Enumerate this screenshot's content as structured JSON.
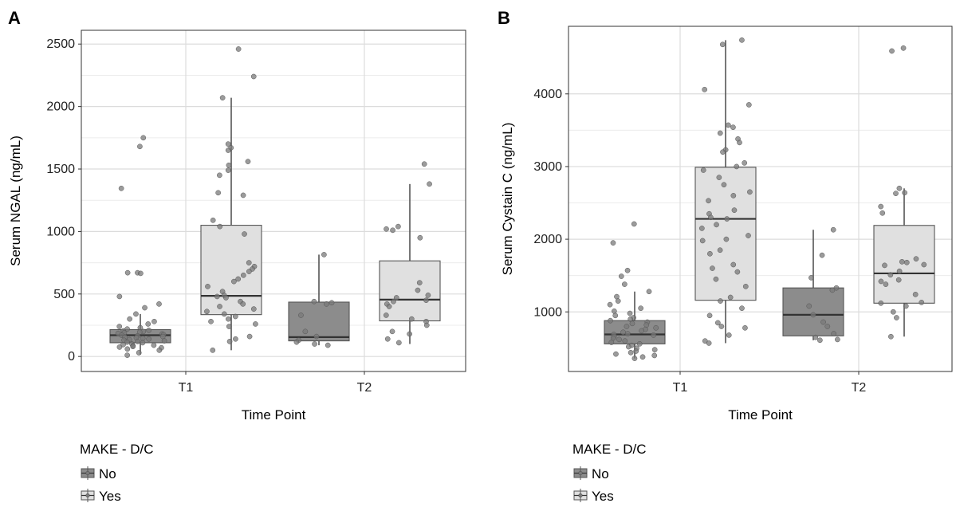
{
  "chart_data": [
    {
      "panel_label": "A",
      "type": "boxplot",
      "xlabel": "Time Point",
      "ylabel": "Serum NGAL (ng/mL)",
      "ylim": [
        -120,
        2610
      ],
      "yticks": [
        0,
        500,
        1000,
        1500,
        2000,
        2500
      ],
      "categories": [
        "T1",
        "T2"
      ],
      "grid": true,
      "legend": {
        "title": "MAKE - D/C",
        "entries": [
          "No",
          "Yes"
        ],
        "placement": "bottom-left"
      },
      "series": [
        {
          "name": "No",
          "color": "#8c8c8c",
          "boxes": [
            {
              "category": "T1",
              "q1": 110,
              "median": 170,
              "q3": 215,
              "whisker_low": 15,
              "whisker_high": 340,
              "points": [
                1680,
                1750,
                1345,
                670,
                670,
                665,
                480,
                420,
                390,
                340,
                300,
                280,
                260,
                240,
                230,
                220,
                210,
                205,
                200,
                195,
                190,
                185,
                180,
                175,
                170,
                165,
                160,
                155,
                150,
                145,
                140,
                135,
                130,
                125,
                120,
                115,
                110,
                100,
                95,
                90,
                85,
                80,
                75,
                70,
                60,
                50,
                30,
                10
              ]
            },
            {
              "category": "T2",
              "q1": 125,
              "median": 155,
              "q3": 435,
              "whisker_low": 90,
              "whisker_high": 815,
              "points": [
                815,
                440,
                430,
                420,
                330,
                200,
                160,
                130,
                115,
                100,
                90
              ]
            }
          ]
        },
        {
          "name": "Yes",
          "color": "#e0e0e0",
          "boxes": [
            {
              "category": "T1",
              "q1": 335,
              "median": 485,
              "q3": 1050,
              "whisker_low": 50,
              "whisker_high": 2070,
              "points": [
                2460,
                2240,
                2070,
                1700,
                1670,
                1650,
                1560,
                1530,
                1490,
                1450,
                1310,
                1290,
                1090,
                1040,
                980,
                750,
                720,
                700,
                680,
                650,
                620,
                600,
                560,
                520,
                490,
                480,
                470,
                440,
                420,
                400,
                380,
                360,
                340,
                320,
                300,
                280,
                260,
                240,
                160,
                140,
                120,
                50
              ]
            },
            {
              "category": "T2",
              "q1": 285,
              "median": 455,
              "q3": 765,
              "whisker_low": 100,
              "whisker_high": 1380,
              "points": [
                1540,
                1380,
                1040,
                1020,
                1010,
                950,
                590,
                530,
                490,
                470,
                450,
                440,
                420,
                400,
                330,
                300,
                280,
                250,
                200,
                180,
                140,
                110
              ]
            }
          ]
        }
      ]
    },
    {
      "panel_label": "B",
      "type": "boxplot",
      "xlabel": "Time Point",
      "ylabel": "Serum Cystain C (ng/mL)",
      "ylim": [
        180,
        4930
      ],
      "yticks": [
        1000,
        2000,
        3000,
        4000
      ],
      "categories": [
        "T1",
        "T2"
      ],
      "grid": true,
      "legend": {
        "title": "MAKE - D/C",
        "entries": [
          "No",
          "Yes"
        ],
        "placement": "bottom-left"
      },
      "series": [
        {
          "name": "No",
          "color": "#8c8c8c",
          "boxes": [
            {
              "category": "T1",
              "q1": 560,
              "median": 690,
              "q3": 880,
              "whisker_low": 360,
              "whisker_high": 1280,
              "points": [
                2210,
                1950,
                1570,
                1490,
                1380,
                1280,
                1210,
                1150,
                1100,
                1050,
                1010,
                980,
                950,
                920,
                900,
                880,
                860,
                840,
                820,
                800,
                780,
                760,
                740,
                720,
                700,
                690,
                680,
                660,
                640,
                620,
                600,
                580,
                560,
                540,
                520,
                500,
                480,
                460,
                440,
                420,
                400,
                380,
                360
              ]
            },
            {
              "category": "T2",
              "q1": 670,
              "median": 960,
              "q3": 1330,
              "whisker_low": 610,
              "whisker_high": 2130,
              "points": [
                2130,
                1780,
                1470,
                1330,
                1300,
                1080,
                960,
                860,
                800,
                700,
                650,
                620,
                610
              ]
            }
          ]
        },
        {
          "name": "Yes",
          "color": "#e0e0e0",
          "boxes": [
            {
              "category": "T1",
              "q1": 1160,
              "median": 2280,
              "q3": 2990,
              "whisker_low": 570,
              "whisker_high": 4740,
              "points": [
                4740,
                4680,
                4060,
                3850,
                3570,
                3540,
                3460,
                3380,
                3330,
                3230,
                3200,
                3050,
                3000,
                2950,
                2850,
                2750,
                2650,
                2600,
                2530,
                2400,
                2350,
                2300,
                2280,
                2200,
                2150,
                2050,
                2000,
                1980,
                1850,
                1800,
                1650,
                1600,
                1550,
                1450,
                1350,
                1200,
                1150,
                1050,
                950,
                850,
                800,
                780,
                680,
                600,
                570
              ]
            },
            {
              "category": "T2",
              "q1": 1120,
              "median": 1530,
              "q3": 2190,
              "whisker_low": 660,
              "whisker_high": 2700,
              "points": [
                4630,
                4590,
                2700,
                2640,
                2630,
                2450,
                2360,
                1730,
                1690,
                1680,
                1650,
                1640,
                1560,
                1510,
                1440,
                1420,
                1380,
                1240,
                1130,
                1120,
                1080,
                1000,
                920,
                660
              ]
            }
          ]
        }
      ]
    }
  ]
}
